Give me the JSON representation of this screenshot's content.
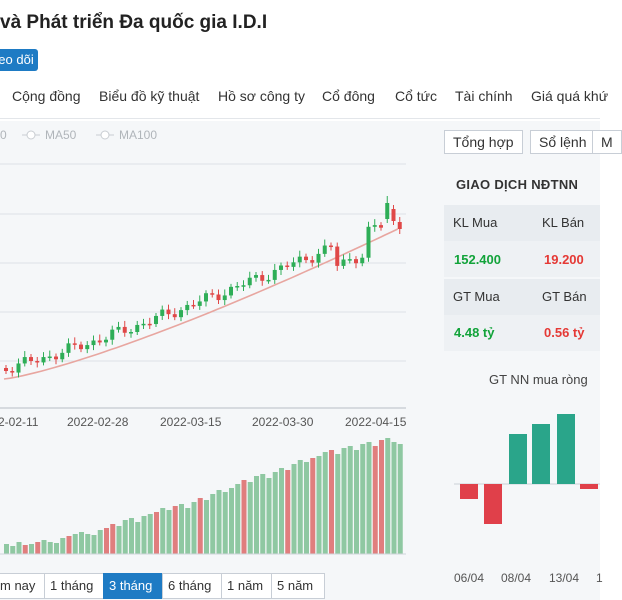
{
  "header": {
    "title": "và Phát triển Đa quốc gia I.D.I",
    "follow_label": "eo dõi"
  },
  "nav": {
    "items": [
      "Cộng đồng",
      "Biểu đồ kỹ thuật",
      "Hồ sơ công ty",
      "Cổ đông",
      "Cổ tức",
      "Tài chính",
      "Giá quá khứ"
    ]
  },
  "chart": {
    "legend": [
      "0",
      "MA50",
      "MA100"
    ],
    "x_labels": [
      "2-02-11",
      "2022-02-28",
      "2022-03-15",
      "2022-03-30",
      "2022-04-15"
    ],
    "range_buttons": [
      "m nay",
      "1 tháng",
      "3 tháng",
      "6 tháng",
      "1 năm",
      "5 năm"
    ],
    "active_range": "3 tháng",
    "colors": {
      "up": "#2eae57",
      "down": "#e04848",
      "ma": "#e8a6a0",
      "vol_up": "#8fc8a2",
      "vol_down": "#e07e7e"
    }
  },
  "panel": {
    "tabs": [
      "Tổng hợp",
      "Sổ lệnh",
      "M"
    ],
    "section_title": "GIAO DỊCH NĐTNN",
    "kl_mua_label": "KL Mua",
    "kl_ban_label": "KL Bán",
    "kl_mua_value": "152.400",
    "kl_ban_value": "19.200",
    "gt_mua_label": "GT Mua",
    "gt_ban_label": "GT Bán",
    "gt_mua_value": "4.48 tỷ",
    "gt_ban_value": "0.56 tỷ",
    "gt_chart_title": "GT NN mua ròng",
    "gt_x_labels": [
      "06/04",
      "08/04",
      "13/04",
      "1"
    ],
    "gt_values": [
      -0.3,
      -0.8,
      1.0,
      1.2,
      1.4,
      -0.1
    ],
    "colors": {
      "positive": "#2aa58a",
      "negative": "#e0404a"
    }
  }
}
